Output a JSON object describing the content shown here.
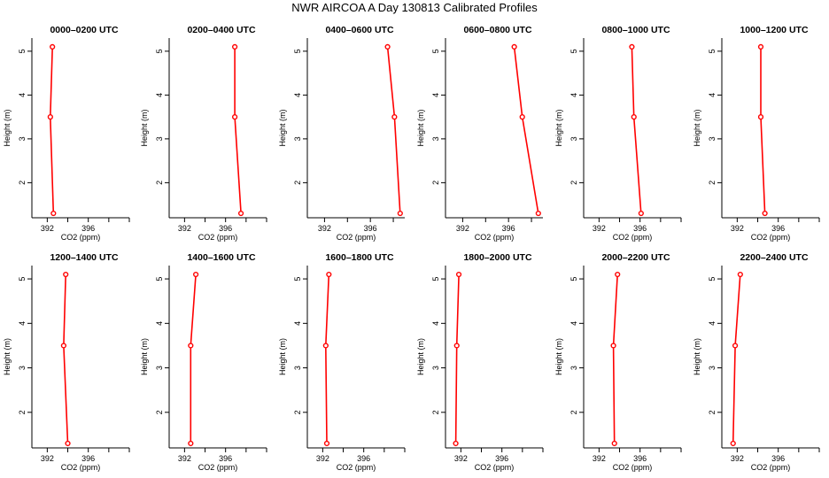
{
  "figure": {
    "title": "NWR AIRCOA A  Day 130813  Calibrated Profiles"
  },
  "chart_data": [
    {
      "type": "line",
      "title": "0000–0200 UTC",
      "xlabel": "CO2 (ppm)",
      "ylabel": "Height (m)",
      "x": [
        392.6,
        392.3,
        392.5
      ],
      "y": [
        1.3,
        3.5,
        5.1
      ],
      "xlim": [
        390.5,
        400
      ],
      "ylim": [
        1.2,
        5.3
      ],
      "xticks": [
        392,
        396
      ],
      "yticks": [
        2,
        3,
        4,
        5
      ]
    },
    {
      "type": "line",
      "title": "0200–0400 UTC",
      "xlabel": "CO2 (ppm)",
      "ylabel": "Height (m)",
      "x": [
        397.5,
        396.9,
        396.9
      ],
      "y": [
        1.3,
        3.5,
        5.1
      ],
      "xlim": [
        390.5,
        400
      ],
      "ylim": [
        1.2,
        5.3
      ],
      "xticks": [
        392,
        396
      ],
      "yticks": [
        2,
        3,
        4,
        5
      ]
    },
    {
      "type": "line",
      "title": "0400–0600 UTC",
      "xlabel": "CO2 (ppm)",
      "ylabel": "Height (m)",
      "x": [
        398.6,
        398.1,
        397.5
      ],
      "y": [
        1.3,
        3.5,
        5.1
      ],
      "xlim": [
        390.5,
        399
      ],
      "ylim": [
        1.2,
        5.3
      ],
      "xticks": [
        392,
        396
      ],
      "yticks": [
        2,
        3,
        4,
        5
      ]
    },
    {
      "type": "line",
      "title": "0600–0800 UTC",
      "xlabel": "CO2 (ppm)",
      "ylabel": "Height (m)",
      "x": [
        398.6,
        397.2,
        396.5
      ],
      "y": [
        1.3,
        3.5,
        5.1
      ],
      "xlim": [
        390.5,
        399
      ],
      "ylim": [
        1.2,
        5.3
      ],
      "xticks": [
        392,
        396
      ],
      "yticks": [
        2,
        3,
        4,
        5
      ]
    },
    {
      "type": "line",
      "title": "0800–1000 UTC",
      "xlabel": "CO2 (ppm)",
      "ylabel": "Height (m)",
      "x": [
        396.1,
        395.4,
        395.2
      ],
      "y": [
        1.3,
        3.5,
        5.1
      ],
      "xlim": [
        390.5,
        400
      ],
      "ylim": [
        1.2,
        5.3
      ],
      "xticks": [
        392,
        396
      ],
      "yticks": [
        2,
        3,
        4,
        5
      ]
    },
    {
      "type": "line",
      "title": "1000–1200 UTC",
      "xlabel": "CO2 (ppm)",
      "ylabel": "Height (m)",
      "x": [
        394.7,
        394.3,
        394.3
      ],
      "y": [
        1.3,
        3.5,
        5.1
      ],
      "xlim": [
        390.5,
        400
      ],
      "ylim": [
        1.2,
        5.3
      ],
      "xticks": [
        392,
        396
      ],
      "yticks": [
        2,
        3,
        4,
        5
      ]
    },
    {
      "type": "line",
      "title": "1200–1400 UTC",
      "xlabel": "CO2 (ppm)",
      "ylabel": "Height (m)",
      "x": [
        394.0,
        393.6,
        393.8
      ],
      "y": [
        1.3,
        3.5,
        5.1
      ],
      "xlim": [
        390.5,
        400
      ],
      "ylim": [
        1.2,
        5.3
      ],
      "xticks": [
        392,
        396
      ],
      "yticks": [
        2,
        3,
        4,
        5
      ]
    },
    {
      "type": "line",
      "title": "1400–1600 UTC",
      "xlabel": "CO2 (ppm)",
      "ylabel": "Height (m)",
      "x": [
        392.6,
        392.6,
        393.1
      ],
      "y": [
        1.3,
        3.5,
        5.1
      ],
      "xlim": [
        390.5,
        400
      ],
      "ylim": [
        1.2,
        5.3
      ],
      "xticks": [
        392,
        396
      ],
      "yticks": [
        2,
        3,
        4,
        5
      ]
    },
    {
      "type": "line",
      "title": "1600–1800 UTC",
      "xlabel": "CO2 (ppm)",
      "ylabel": "Height (m)",
      "x": [
        392.4,
        392.3,
        392.6
      ],
      "y": [
        1.3,
        3.5,
        5.1
      ],
      "xlim": [
        390.5,
        400
      ],
      "ylim": [
        1.2,
        5.3
      ],
      "xticks": [
        392,
        396
      ],
      "yticks": [
        2,
        3,
        4,
        5
      ]
    },
    {
      "type": "line",
      "title": "1800–2000 UTC",
      "xlabel": "CO2 (ppm)",
      "ylabel": "Height (m)",
      "x": [
        391.5,
        391.6,
        391.8
      ],
      "y": [
        1.3,
        3.5,
        5.1
      ],
      "xlim": [
        390.5,
        400
      ],
      "ylim": [
        1.2,
        5.3
      ],
      "xticks": [
        392,
        396
      ],
      "yticks": [
        2,
        3,
        4,
        5
      ]
    },
    {
      "type": "line",
      "title": "2000–2200 UTC",
      "xlabel": "CO2 (ppm)",
      "ylabel": "Height (m)",
      "x": [
        393.5,
        393.4,
        393.8
      ],
      "y": [
        1.3,
        3.5,
        5.1
      ],
      "xlim": [
        390.5,
        400
      ],
      "ylim": [
        1.2,
        5.3
      ],
      "xticks": [
        392,
        396
      ],
      "yticks": [
        2,
        3,
        4,
        5
      ]
    },
    {
      "type": "line",
      "title": "2200–2400 UTC",
      "xlabel": "CO2 (ppm)",
      "ylabel": "Height (m)",
      "x": [
        391.6,
        391.8,
        392.3
      ],
      "y": [
        1.3,
        3.5,
        5.1
      ],
      "xlim": [
        390.5,
        400
      ],
      "ylim": [
        1.2,
        5.3
      ],
      "xticks": [
        392,
        396
      ],
      "yticks": [
        2,
        3,
        4,
        5
      ]
    }
  ],
  "colors": {
    "line": "#ff0000",
    "axis": "#000000"
  }
}
